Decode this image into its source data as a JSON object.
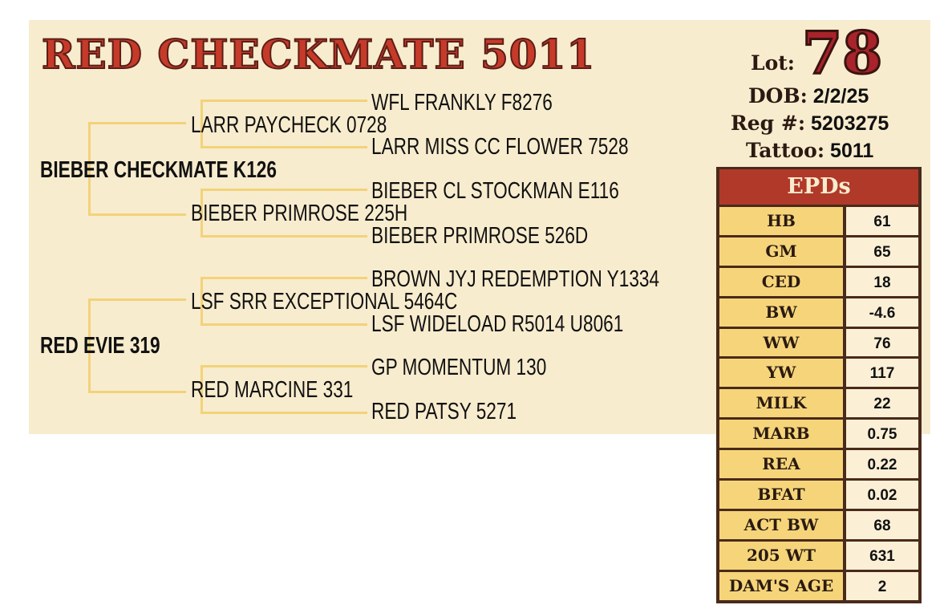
{
  "title": "RED CHECKMATE 5011",
  "lot": {
    "label": "Lot:",
    "number": "78"
  },
  "dob": {
    "label": "DOB:",
    "value": "2/2/25"
  },
  "reg": {
    "label": "Reg #:",
    "value": "5203275"
  },
  "tattoo": {
    "label": "Tattoo:",
    "value": "5011"
  },
  "pedigree": {
    "sire": "BIEBER CHECKMATE K126",
    "sire_sire": "LARR PAYCHECK 0728",
    "sire_sire_sire": "WFL FRANKLY F8276",
    "sire_sire_dam": "LARR MISS CC FLOWER 7528",
    "sire_dam": "BIEBER PRIMROSE 225H",
    "sire_dam_sire": "BIEBER CL STOCKMAN E116",
    "sire_dam_dam": "BIEBER PRIMROSE 526D",
    "dam": "RED EVIE 319",
    "dam_sire": "LSF SRR EXCEPTIONAL 5464C",
    "dam_sire_sire": "BROWN JYJ REDEMPTION Y1334",
    "dam_sire_dam": "LSF WIDELOAD R5014 U8061",
    "dam_dam": "RED MARCINE 331",
    "dam_dam_sire": "GP MOMENTUM 130",
    "dam_dam_dam": "RED PATSY 5271"
  },
  "epds": {
    "header": "EPDs",
    "rows": [
      {
        "label": "HB",
        "value": "61"
      },
      {
        "label": "GM",
        "value": "65"
      },
      {
        "label": "CED",
        "value": "18"
      },
      {
        "label": "BW",
        "value": "-4.6"
      },
      {
        "label": "WW",
        "value": "76"
      },
      {
        "label": "YW",
        "value": "117"
      },
      {
        "label": "MILK",
        "value": "22"
      },
      {
        "label": "MARB",
        "value": "0.75"
      },
      {
        "label": "REA",
        "value": "0.22"
      },
      {
        "label": "BFAT",
        "value": "0.02"
      },
      {
        "label": "ACT BW",
        "value": "68"
      },
      {
        "label": "205 WT",
        "value": "631"
      },
      {
        "label": "DAM'S AGE",
        "value": "2"
      }
    ]
  },
  "colors": {
    "panel": "#f8ecce",
    "title_red": "#c63a2a",
    "lot_red": "#a8232a",
    "epd_header": "#b0392a",
    "epd_label_bg": "#f6d57a",
    "line_gold": "#f2d27a",
    "border": "#4a2a1a"
  }
}
